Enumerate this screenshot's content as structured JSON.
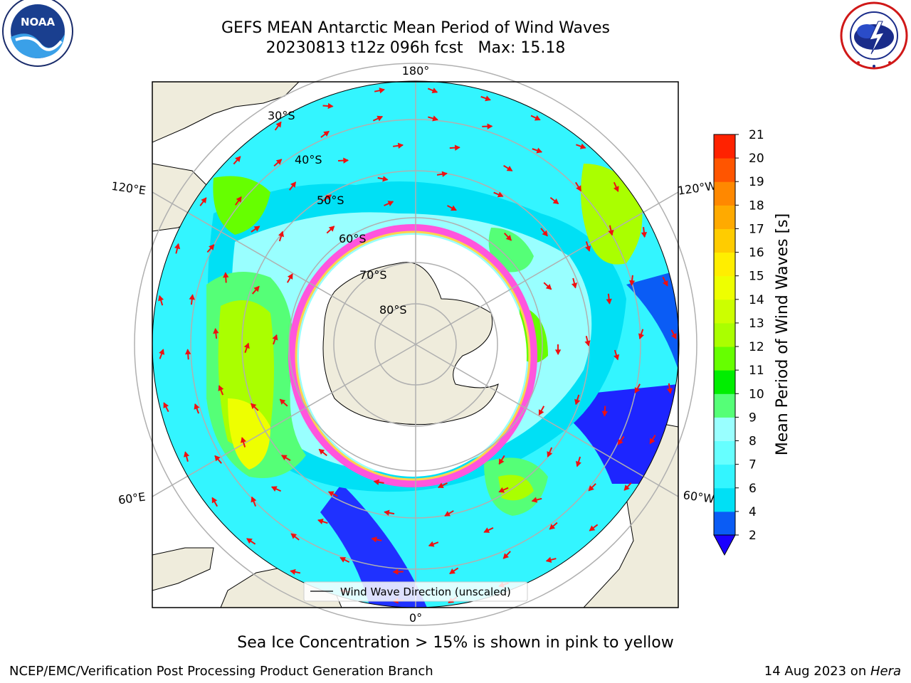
{
  "title": {
    "line1": "GEFS MEAN Antarctic Mean Period of Wind Waves",
    "line2": "20230813 t12z 096h fcst   Max: 15.18"
  },
  "logos": {
    "noaa": {
      "text": "NOAA",
      "ring_text": "NATIONAL OCEANIC AND ATMOSPHERIC ADMINISTRATION · U.S. DEPARTMENT OF COMMERCE"
    },
    "nws": {
      "ring_text": "NATIONAL WEATHER SERVICE"
    }
  },
  "map": {
    "projection": "south-polar-stereographic",
    "longitude_labels": {
      "top": "180°",
      "upper_left": "120°E",
      "upper_right": "120°W",
      "lower_left": "60°E",
      "lower_right": "60°W",
      "bottom": "0°"
    },
    "latitude_labels": [
      "30°S",
      "40°S",
      "50°S",
      "60°S",
      "70°S",
      "80°S"
    ],
    "legend_label": "Wind Wave Direction (unscaled)",
    "colors": {
      "land": "#efecdc",
      "ice_pink": "#ff55dd",
      "ice_yellow": "#ffd34d",
      "arrow": "#ee1111",
      "grid": "#b0b0b0"
    }
  },
  "colorbar": {
    "label": "Mean Period of Wind Waves [s]",
    "ticks": [
      "2",
      "4",
      "6",
      "7",
      "8",
      "9",
      "10",
      "11",
      "12",
      "13",
      "14",
      "15",
      "16",
      "17",
      "18",
      "19",
      "20",
      "21"
    ],
    "colors": [
      "#0a5cf5",
      "#00e0f5",
      "#33f5ff",
      "#66ffff",
      "#99ffff",
      "#55ff77",
      "#00ee00",
      "#66ff00",
      "#aaff00",
      "#ccff00",
      "#eeff00",
      "#ffee00",
      "#ffcc00",
      "#ffaa00",
      "#ff8800",
      "#ff5500",
      "#ff2200"
    ],
    "extend_color": "#1a00ff"
  },
  "ice_note": "Sea Ice Concentration > 15% is shown in pink to yellow",
  "footer": {
    "left": "NCEP/EMC/Verification Post Processing Product Generation Branch",
    "date": "14 Aug 2023 on ",
    "machine": "Hera"
  }
}
